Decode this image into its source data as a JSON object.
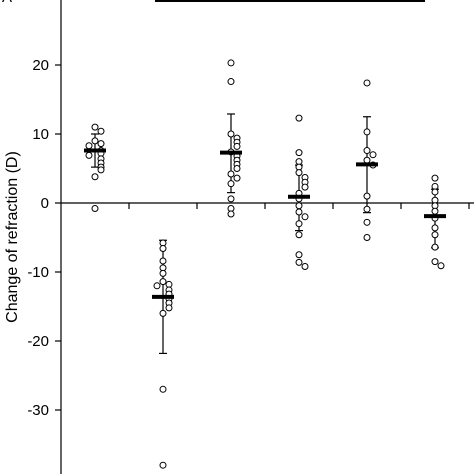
{
  "chart_data": {
    "type": "scatter",
    "ylabel": "Change of refraction (D)",
    "ylim": [
      -38,
      29
    ],
    "yticks": [
      20,
      10,
      0,
      -10,
      -20,
      -30
    ],
    "ytick_labels": [
      "20",
      "10",
      "0",
      "-10",
      "-20",
      "-30"
    ],
    "grid": false,
    "panel_letter": "A",
    "significance_bar": {
      "from_group": 2,
      "to_group": 5
    },
    "groups": [
      {
        "x": 1,
        "points": [
          11.0,
          10.4,
          9.0,
          8.6,
          8.3,
          7.6,
          7.2,
          6.9,
          6.4,
          5.8,
          5.2,
          4.8,
          3.8,
          -0.8
        ],
        "mean": 7.6,
        "sd_upper": 10.0,
        "sd_lower": 5.2
      },
      {
        "x": 2,
        "points": [
          -5.8,
          -6.6,
          -8.4,
          -9.4,
          -10.2,
          -11.4,
          -11.8,
          -12.0,
          -12.6,
          -13.2,
          -13.9,
          -14.5,
          -15.2,
          -16.0,
          -27.0,
          -38.0
        ],
        "mean": -13.6,
        "sd_upper": -5.4,
        "sd_lower": -21.8
      },
      {
        "x": 3,
        "points": [
          20.3,
          17.6,
          10.0,
          9.4,
          8.8,
          8.2,
          7.4,
          6.8,
          6.2,
          5.6,
          5.0,
          4.2,
          3.6,
          2.8,
          0.6,
          -0.8,
          -1.6
        ],
        "mean": 7.3,
        "sd_upper": 12.9,
        "sd_lower": 1.5
      },
      {
        "x": 4,
        "points": [
          12.3,
          7.3,
          6.0,
          5.2,
          4.4,
          3.7,
          3.0,
          2.3,
          1.4,
          0.6,
          -0.4,
          -1.3,
          -2.0,
          -3.0,
          -4.6,
          -7.5,
          -8.6,
          -9.2
        ],
        "mean": 0.9,
        "sd_upper": 5.5,
        "sd_lower": -4.0
      },
      {
        "x": 5,
        "points": [
          17.4,
          10.3,
          7.6,
          7.0,
          6.2,
          5.5,
          1.0,
          -0.9,
          -2.8,
          -5.0
        ],
        "mean": 5.6,
        "sd_upper": 12.5,
        "sd_lower": -1.4
      },
      {
        "x": 6,
        "points": [
          3.6,
          2.4,
          1.6,
          0.4,
          -0.4,
          -1.2,
          -2.2,
          -3.6,
          -4.6,
          -6.4,
          -8.5,
          -9.1
        ],
        "mean": -1.9,
        "sd_upper": 2.0,
        "sd_lower": -6.5
      }
    ],
    "colors": {
      "marker_fill": "#ffffff",
      "marker_stroke": "#000000",
      "mean_bar": "#000000"
    }
  }
}
